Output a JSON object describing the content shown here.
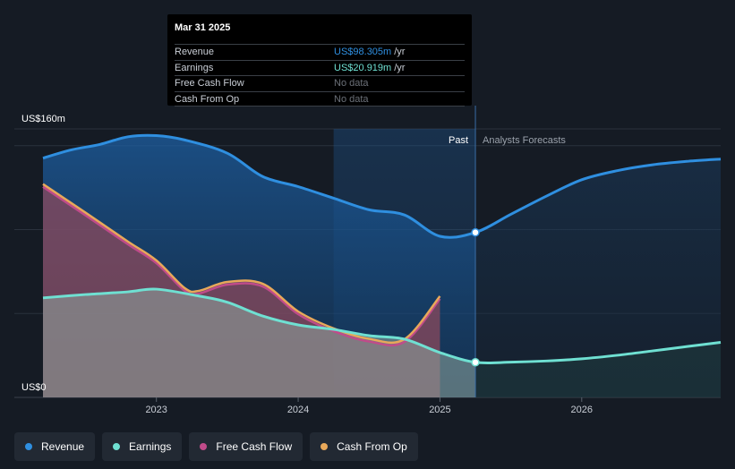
{
  "chart_data": {
    "type": "area",
    "ylabel_top": "US$160m",
    "ylabel_bottom": "US$0",
    "ylim": [
      0,
      160
    ],
    "xlim": [
      2022.2,
      2026.98
    ],
    "x_ticks": [
      {
        "value": 2023,
        "label": "2023"
      },
      {
        "value": 2024,
        "label": "2024"
      },
      {
        "value": 2025,
        "label": "2025"
      },
      {
        "value": 2026,
        "label": "2026"
      }
    ],
    "past_label": "Past",
    "forecast_label": "Analysts Forecasts",
    "highlight_start": 2024.25,
    "divider_x": 2025.25,
    "series": [
      {
        "name": "Revenue",
        "color": "#2f8fe0",
        "x": [
          2022.2,
          2022.4,
          2022.6,
          2022.8,
          2023.0,
          2023.2,
          2023.5,
          2023.75,
          2024.0,
          2024.25,
          2024.5,
          2024.75,
          2025.0,
          2025.25,
          2025.5,
          2025.75,
          2026.0,
          2026.25,
          2026.5,
          2026.75,
          2026.98
        ],
        "values": [
          142.6,
          147.5,
          150.7,
          155.3,
          156.0,
          153.4,
          145.5,
          131.6,
          125.6,
          118.7,
          111.8,
          108.7,
          96.0,
          98.305,
          109.1,
          119.9,
          129.7,
          135.1,
          138.6,
          140.7,
          142.0
        ]
      },
      {
        "name": "Earnings",
        "color": "#6fe0d2",
        "x": [
          2022.2,
          2022.5,
          2022.8,
          2023.0,
          2023.3,
          2023.5,
          2023.75,
          2024.0,
          2024.25,
          2024.5,
          2024.75,
          2025.0,
          2025.25,
          2025.5,
          2025.75,
          2026.0,
          2026.25,
          2026.5,
          2026.75,
          2026.98
        ],
        "values": [
          59.3,
          61.3,
          62.9,
          64.5,
          60.4,
          56.7,
          48.5,
          43.2,
          40.5,
          36.8,
          34.7,
          26.7,
          20.919,
          21.0,
          21.7,
          23.0,
          25.1,
          27.7,
          30.4,
          32.8
        ]
      },
      {
        "name": "Free Cash Flow",
        "color": "#c04b8a",
        "x": [
          2022.2,
          2022.5,
          2022.8,
          2023.0,
          2023.2,
          2023.3,
          2023.5,
          2023.75,
          2024.0,
          2024.25,
          2024.5,
          2024.75,
          2025.0
        ],
        "values": [
          125.5,
          108.5,
          91.2,
          80.0,
          63.5,
          61.9,
          67.2,
          66.1,
          49.6,
          39.5,
          33.3,
          33.1,
          58.7
        ]
      },
      {
        "name": "Cash From Op",
        "color": "#e8a85a",
        "x": [
          2022.2,
          2022.5,
          2022.8,
          2023.0,
          2023.2,
          2023.3,
          2023.5,
          2023.75,
          2024.0,
          2024.25,
          2024.5,
          2024.75,
          2025.0
        ],
        "values": [
          127.1,
          110.1,
          92.8,
          81.6,
          65.1,
          63.5,
          68.8,
          67.7,
          51.2,
          41.1,
          34.9,
          34.7,
          60.3
        ]
      }
    ]
  },
  "tooltip": {
    "date": "Mar 31 2025",
    "rows": [
      {
        "label": "Revenue",
        "value": "US$98.305m",
        "unit": "/yr",
        "color": "#2f8fe0"
      },
      {
        "label": "Earnings",
        "value": "US$20.919m",
        "unit": "/yr",
        "color": "#6fe0d2"
      },
      {
        "label": "Free Cash Flow",
        "value": "No data",
        "unit": "",
        "color": "#6b7078"
      },
      {
        "label": "Cash From Op",
        "value": "No data",
        "unit": "",
        "color": "#6b7078"
      }
    ]
  },
  "legend": [
    {
      "label": "Revenue",
      "color": "#2f8fe0"
    },
    {
      "label": "Earnings",
      "color": "#6fe0d2"
    },
    {
      "label": "Free Cash Flow",
      "color": "#c04b8a"
    },
    {
      "label": "Cash From Op",
      "color": "#e8a85a"
    }
  ]
}
